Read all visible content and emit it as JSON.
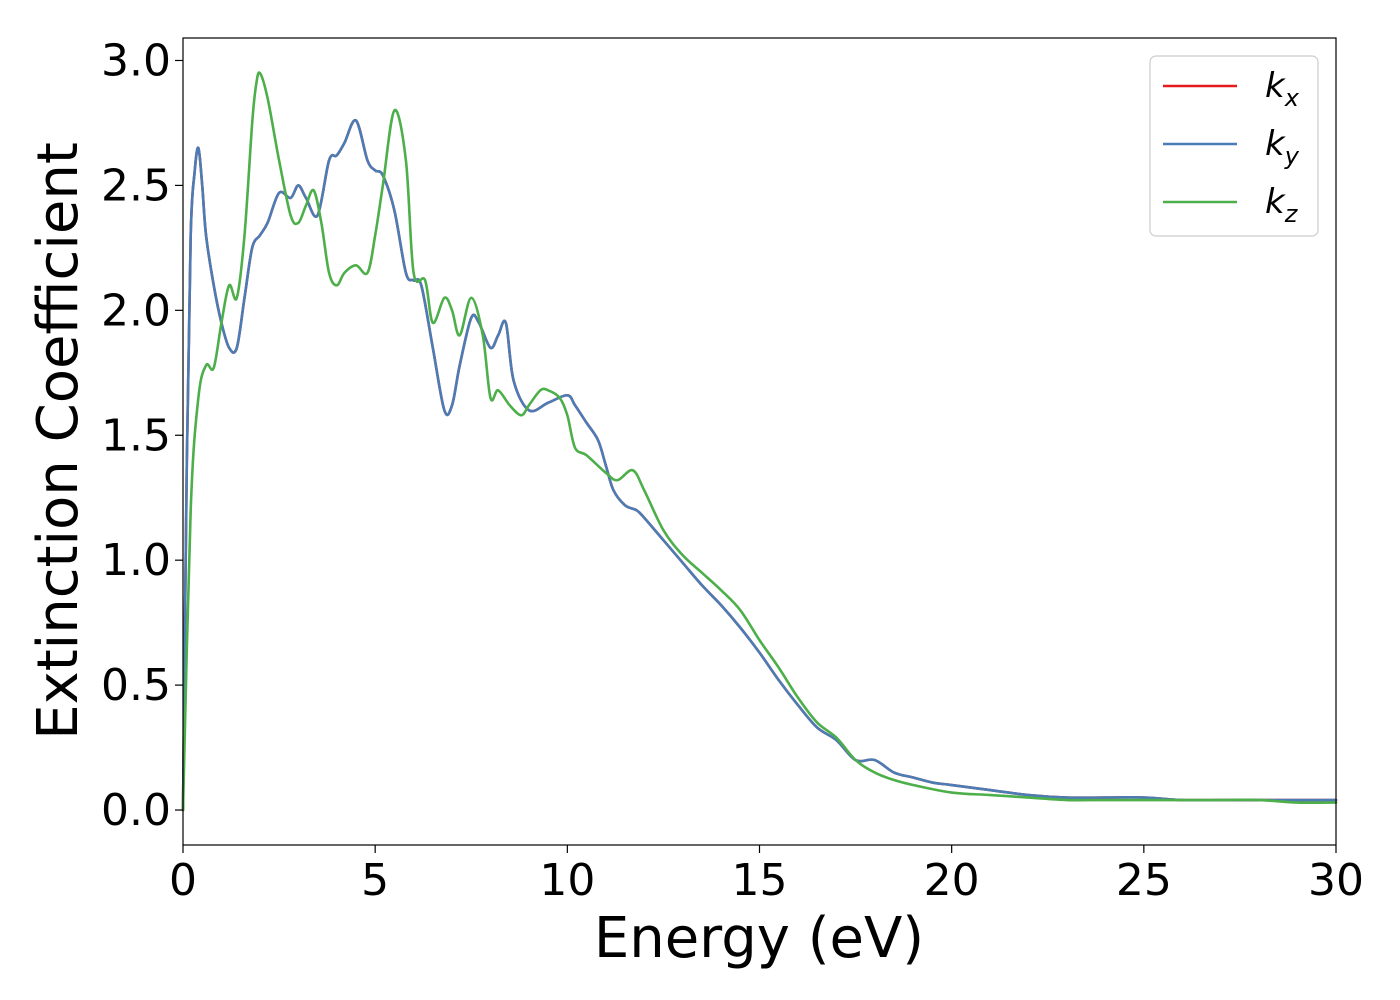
{
  "chart_data": {
    "type": "line",
    "title": "",
    "xlabel": "Energy (eV)",
    "ylabel": "Extinction Coefficient",
    "xlim": [
      0,
      30
    ],
    "ylim": [
      -0.14,
      3.09
    ],
    "xticks": [
      0,
      5,
      10,
      15,
      20,
      25,
      30
    ],
    "xtick_labels": [
      "0",
      "5",
      "10",
      "15",
      "20",
      "25",
      "30"
    ],
    "yticks": [
      0.0,
      0.5,
      1.0,
      1.5,
      2.0,
      2.5,
      3.0
    ],
    "ytick_labels": [
      "0.0",
      "0.5",
      "1.0",
      "1.5",
      "2.0",
      "2.5",
      "3.0"
    ],
    "grid": false,
    "legend_position": "top-right",
    "series": [
      {
        "name": "k",
        "subscript": "x",
        "color": "#e41a1c",
        "x": [
          0,
          0.1,
          0.2,
          0.3,
          0.4,
          0.5,
          0.6,
          0.8,
          1.0,
          1.2,
          1.4,
          1.6,
          1.8,
          2.0,
          2.2,
          2.5,
          2.8,
          3.0,
          3.2,
          3.5,
          3.8,
          4.0,
          4.2,
          4.5,
          4.8,
          5.0,
          5.2,
          5.5,
          5.8,
          6.0,
          6.2,
          6.5,
          6.8,
          7.0,
          7.2,
          7.5,
          7.7,
          8.0,
          8.2,
          8.4,
          8.6,
          9.0,
          9.5,
          10.0,
          10.2,
          10.5,
          10.8,
          11.0,
          11.2,
          11.5,
          11.8,
          12.0,
          12.5,
          13.0,
          13.5,
          14.0,
          14.5,
          15.0,
          15.5,
          16.0,
          16.5,
          17.0,
          17.5,
          18.0,
          18.5,
          19.0,
          19.5,
          20.0,
          21.0,
          22.0,
          23.0,
          24.0,
          25.0,
          26.0,
          27.0,
          28.0,
          29.0,
          30.0
        ],
        "y": [
          0.0,
          1.4,
          2.3,
          2.55,
          2.65,
          2.5,
          2.3,
          2.1,
          1.95,
          1.85,
          1.85,
          2.05,
          2.25,
          2.3,
          2.35,
          2.47,
          2.45,
          2.5,
          2.45,
          2.38,
          2.6,
          2.62,
          2.67,
          2.76,
          2.6,
          2.56,
          2.54,
          2.4,
          2.15,
          2.12,
          2.1,
          1.85,
          1.6,
          1.62,
          1.78,
          1.97,
          1.95,
          1.85,
          1.9,
          1.95,
          1.72,
          1.6,
          1.63,
          1.66,
          1.62,
          1.55,
          1.48,
          1.38,
          1.28,
          1.22,
          1.2,
          1.17,
          1.08,
          0.99,
          0.9,
          0.82,
          0.73,
          0.63,
          0.52,
          0.42,
          0.33,
          0.28,
          0.2,
          0.2,
          0.15,
          0.13,
          0.11,
          0.1,
          0.08,
          0.06,
          0.05,
          0.05,
          0.05,
          0.04,
          0.04,
          0.04,
          0.04,
          0.04
        ]
      },
      {
        "name": "k",
        "subscript": "y",
        "color": "#4a7db5",
        "x": [
          0,
          0.1,
          0.2,
          0.3,
          0.4,
          0.5,
          0.6,
          0.8,
          1.0,
          1.2,
          1.4,
          1.6,
          1.8,
          2.0,
          2.2,
          2.5,
          2.8,
          3.0,
          3.2,
          3.5,
          3.8,
          4.0,
          4.2,
          4.5,
          4.8,
          5.0,
          5.2,
          5.5,
          5.8,
          6.0,
          6.2,
          6.5,
          6.8,
          7.0,
          7.2,
          7.5,
          7.7,
          8.0,
          8.2,
          8.4,
          8.6,
          9.0,
          9.5,
          10.0,
          10.2,
          10.5,
          10.8,
          11.0,
          11.2,
          11.5,
          11.8,
          12.0,
          12.5,
          13.0,
          13.5,
          14.0,
          14.5,
          15.0,
          15.5,
          16.0,
          16.5,
          17.0,
          17.5,
          18.0,
          18.5,
          19.0,
          19.5,
          20.0,
          21.0,
          22.0,
          23.0,
          24.0,
          25.0,
          26.0,
          27.0,
          28.0,
          29.0,
          30.0
        ],
        "y": [
          0.0,
          1.4,
          2.3,
          2.55,
          2.65,
          2.5,
          2.3,
          2.1,
          1.95,
          1.85,
          1.85,
          2.05,
          2.25,
          2.3,
          2.35,
          2.47,
          2.45,
          2.5,
          2.45,
          2.38,
          2.6,
          2.62,
          2.67,
          2.76,
          2.6,
          2.56,
          2.54,
          2.4,
          2.15,
          2.12,
          2.1,
          1.85,
          1.6,
          1.62,
          1.78,
          1.97,
          1.95,
          1.85,
          1.9,
          1.95,
          1.72,
          1.6,
          1.63,
          1.66,
          1.62,
          1.55,
          1.48,
          1.38,
          1.28,
          1.22,
          1.2,
          1.17,
          1.08,
          0.99,
          0.9,
          0.82,
          0.73,
          0.63,
          0.52,
          0.42,
          0.33,
          0.28,
          0.2,
          0.2,
          0.15,
          0.13,
          0.11,
          0.1,
          0.08,
          0.06,
          0.05,
          0.05,
          0.05,
          0.04,
          0.04,
          0.04,
          0.04,
          0.04
        ]
      },
      {
        "name": "k",
        "subscript": "z",
        "color": "#4daf4a",
        "x": [
          0,
          0.2,
          0.4,
          0.6,
          0.8,
          1.0,
          1.2,
          1.4,
          1.6,
          1.8,
          1.9,
          2.0,
          2.2,
          2.5,
          2.8,
          3.0,
          3.2,
          3.4,
          3.6,
          3.8,
          4.0,
          4.2,
          4.5,
          4.8,
          5.0,
          5.2,
          5.5,
          5.8,
          6.0,
          6.3,
          6.5,
          6.8,
          7.0,
          7.2,
          7.5,
          7.8,
          8.0,
          8.2,
          8.5,
          8.8,
          9.0,
          9.3,
          9.5,
          9.8,
          10.0,
          10.2,
          10.5,
          11.0,
          11.3,
          11.7,
          12.0,
          12.5,
          13.0,
          13.5,
          14.0,
          14.5,
          15.0,
          15.5,
          16.0,
          16.5,
          17.0,
          17.5,
          18.0,
          18.5,
          19.0,
          20.0,
          21.0,
          22.0,
          23.0,
          24.0,
          25.0,
          26.0,
          27.0,
          28.0,
          29.0,
          30.0
        ],
        "y": [
          0.0,
          1.2,
          1.65,
          1.78,
          1.77,
          1.95,
          2.1,
          2.05,
          2.3,
          2.75,
          2.9,
          2.95,
          2.85,
          2.6,
          2.38,
          2.35,
          2.42,
          2.48,
          2.35,
          2.15,
          2.1,
          2.15,
          2.18,
          2.15,
          2.3,
          2.5,
          2.8,
          2.6,
          2.15,
          2.12,
          1.95,
          2.05,
          2.0,
          1.9,
          2.05,
          1.9,
          1.65,
          1.68,
          1.62,
          1.58,
          1.62,
          1.68,
          1.68,
          1.65,
          1.58,
          1.45,
          1.42,
          1.35,
          1.32,
          1.36,
          1.28,
          1.12,
          1.02,
          0.95,
          0.88,
          0.8,
          0.68,
          0.57,
          0.45,
          0.35,
          0.29,
          0.2,
          0.15,
          0.12,
          0.1,
          0.07,
          0.06,
          0.05,
          0.04,
          0.04,
          0.04,
          0.04,
          0.04,
          0.04,
          0.03,
          0.03
        ]
      }
    ]
  }
}
